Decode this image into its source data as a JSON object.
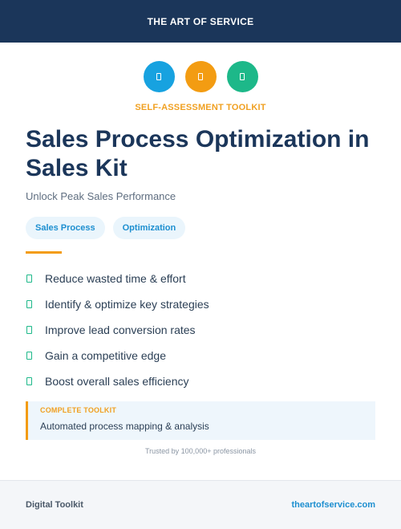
{
  "header": {
    "brand": "THE ART OF SERVICE"
  },
  "icons": [
    {
      "name": "document-icon",
      "color": "#17a2e0"
    },
    {
      "name": "document-icon",
      "color": "#f39c12"
    },
    {
      "name": "document-icon",
      "color": "#1db889"
    }
  ],
  "eyebrow": "SELF-ASSESSMENT TOOLKIT",
  "title": "Sales Process Optimization in Sales Kit",
  "subtitle": "Unlock Peak Sales Performance",
  "tags": [
    "Sales Process",
    "Optimization"
  ],
  "benefits": [
    "Reduce wasted time & effort",
    "Identify & optimize key strategies",
    "Improve lead conversion rates",
    "Gain a competitive edge",
    "Boost overall sales efficiency"
  ],
  "callout": {
    "kicker": "COMPLETE TOOLKIT",
    "text": "Automated process mapping & analysis"
  },
  "trusted": "Trusted by 100,000+ professionals",
  "footer": {
    "left": "Digital Toolkit",
    "right": "theartofservice.com"
  },
  "colors": {
    "header_bg": "#1b365a",
    "accent_orange": "#f39c12",
    "accent_blue": "#17a2e0",
    "accent_green": "#1db889"
  }
}
